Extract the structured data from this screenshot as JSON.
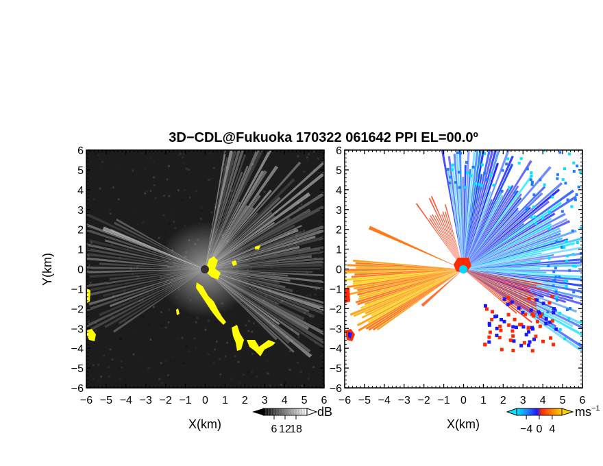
{
  "chart_data": {
    "title": "3D−CDL@Fukuoka 170322 061642 PPI EL=00.0º",
    "panels": [
      {
        "type": "heatmap",
        "name": "signal-power",
        "xlabel": "X(km)",
        "ylabel": "Y(km)",
        "xlim": [
          -6,
          6
        ],
        "ylim": [
          -6,
          6
        ],
        "xticks": [
          "−6",
          "−5",
          "−4",
          "−3",
          "−2",
          "−1",
          "0",
          "1",
          "2",
          "3",
          "4",
          "5",
          "6"
        ],
        "yticks": [
          "−6",
          "−5",
          "−4",
          "−3",
          "−2",
          "−1",
          "0",
          "1",
          "2",
          "3",
          "4",
          "5",
          "6"
        ],
        "colorbar": {
          "unit": "dB",
          "ticks": [
            "6",
            "12",
            "18"
          ],
          "tick_values": [
            6,
            12,
            18
          ],
          "range": [
            0,
            24
          ],
          "colors": [
            "#000000",
            "#ffffff"
          ]
        },
        "highlight_color": "#ffff00",
        "background_color": "#1c1c1c"
      },
      {
        "type": "heatmap",
        "name": "doppler-velocity",
        "xlabel": "X(km)",
        "ylabel": "",
        "xlim": [
          -6,
          6
        ],
        "ylim": [
          -6,
          6
        ],
        "xticks": [
          "−6",
          "−5",
          "−4",
          "−3",
          "−2",
          "−1",
          "0",
          "1",
          "2",
          "3",
          "4",
          "5",
          "6"
        ],
        "yticks": [
          "−6",
          "−5",
          "−4",
          "−3",
          "−2",
          "−1",
          "0",
          "1",
          "2",
          "3",
          "4",
          "5",
          "6"
        ],
        "colorbar": {
          "unit": "ms",
          "unit_exponent": "−1",
          "ticks": [
            "−4",
            "0",
            "4"
          ],
          "tick_values": [
            -4,
            0,
            4
          ],
          "range": [
            -7,
            7
          ],
          "colors": [
            "#00e5ff",
            "#1f7bff",
            "#1a1aff",
            "#ff2a00",
            "#ff8000",
            "#ffd000"
          ]
        },
        "background_color": "#ffffff"
      }
    ]
  }
}
